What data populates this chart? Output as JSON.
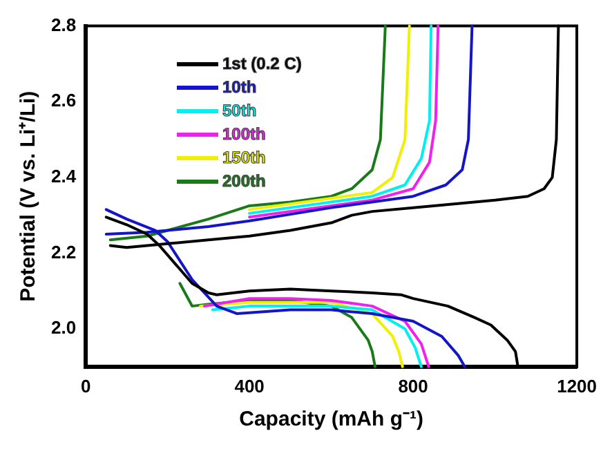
{
  "chart_data": {
    "type": "line",
    "xlabel": "Capacity (mAh g⁻¹)",
    "ylabel": "Potential (V vs. Li⁺/Li)",
    "xlim": [
      0,
      1200
    ],
    "xticks": [
      0,
      400,
      800,
      1200
    ],
    "ylim": [
      1.9,
      2.8
    ],
    "yticks": [
      {
        "value": 2,
        "label": "2.0"
      },
      {
        "value": 2.2,
        "label": "2.2"
      },
      {
        "value": 2.4,
        "label": "2.4"
      },
      {
        "value": 2.6,
        "label": "2.6"
      },
      {
        "value": 2.8,
        "label": "2.8"
      }
    ],
    "grid": false,
    "legend": "top left",
    "marker": "none",
    "line_style": "solid",
    "series": [
      {
        "name": "1st (0.2 C)",
        "color": "#000000",
        "x": [
          50,
          100,
          150,
          180,
          220,
          260,
          300,
          320,
          400,
          500,
          600,
          700,
          770,
          800,
          885,
          950,
          990,
          1030,
          1050,
          1056
        ],
        "values": [
          2.295,
          2.275,
          2.25,
          2.22,
          2.17,
          2.12,
          2.095,
          2.09,
          2.1,
          2.105,
          2.1,
          2.095,
          2.09,
          2.08,
          2.06,
          2.03,
          2.01,
          1.97,
          1.94,
          1.9
        ]
      },
      {
        "color": "#000000",
        "x": [
          60,
          100,
          200,
          300,
          400,
          500,
          600,
          650,
          700,
          800,
          900,
          1000,
          1080,
          1120,
          1140,
          1150,
          1155
        ],
        "values": [
          2.22,
          2.215,
          2.225,
          2.235,
          2.245,
          2.26,
          2.28,
          2.3,
          2.31,
          2.32,
          2.33,
          2.34,
          2.35,
          2.37,
          2.4,
          2.5,
          2.8
        ]
      },
      {
        "name": "10th",
        "color": "#1414c8",
        "x": [
          50,
          100,
          170,
          200,
          260,
          320,
          370,
          500,
          600,
          700,
          800,
          870,
          910,
          926
        ],
        "values": [
          2.315,
          2.29,
          2.26,
          2.23,
          2.13,
          2.06,
          2.04,
          2.05,
          2.05,
          2.04,
          2.02,
          1.98,
          1.93,
          1.9
        ]
      },
      {
        "color": "#1414c8",
        "x": [
          50,
          150,
          300,
          400,
          600,
          800,
          880,
          920,
          935,
          944
        ],
        "values": [
          2.25,
          2.255,
          2.27,
          2.285,
          2.32,
          2.35,
          2.38,
          2.42,
          2.5,
          2.8
        ]
      },
      {
        "name": "50th",
        "color": "#00f0f0",
        "x": [
          310,
          400,
          500,
          600,
          700,
          780,
          805,
          820
        ],
        "values": [
          2.05,
          2.06,
          2.06,
          2.06,
          2.05,
          2.0,
          1.95,
          1.9
        ]
      },
      {
        "color": "#00f0f0",
        "x": [
          400,
          700,
          780,
          820,
          840,
          844
        ],
        "values": [
          2.305,
          2.35,
          2.38,
          2.45,
          2.55,
          2.8
        ]
      },
      {
        "name": "100th",
        "color": "#f020f0",
        "x": [
          290,
          400,
          500,
          600,
          700,
          780,
          820,
          838
        ],
        "values": [
          2.06,
          2.08,
          2.08,
          2.075,
          2.06,
          2.02,
          1.96,
          1.9
        ]
      },
      {
        "color": "#f020f0",
        "x": [
          400,
          700,
          800,
          840,
          855,
          861
        ],
        "values": [
          2.295,
          2.34,
          2.37,
          2.44,
          2.55,
          2.8
        ]
      },
      {
        "name": "150th",
        "color": "#f0f000",
        "x": [
          280,
          400,
          500,
          600,
          700,
          750,
          765,
          774
        ],
        "values": [
          2.06,
          2.07,
          2.07,
          2.07,
          2.04,
          1.98,
          1.94,
          1.9
        ]
      },
      {
        "color": "#f0f000",
        "x": [
          400,
          700,
          750,
          780,
          791
        ],
        "values": [
          2.315,
          2.36,
          2.4,
          2.5,
          2.8
        ]
      },
      {
        "name": "200th",
        "color": "#1a7a1a",
        "x": [
          230,
          260,
          300,
          400,
          500,
          600,
          650,
          690,
          700,
          707
        ],
        "values": [
          2.12,
          2.06,
          2.065,
          2.075,
          2.075,
          2.06,
          2.03,
          1.97,
          1.94,
          1.9
        ]
      },
      {
        "color": "#1a7a1a",
        "x": [
          60,
          150,
          300,
          400,
          500,
          600,
          650,
          700,
          720,
          732
        ],
        "values": [
          2.235,
          2.245,
          2.29,
          2.325,
          2.335,
          2.35,
          2.37,
          2.42,
          2.5,
          2.8
        ]
      }
    ]
  }
}
